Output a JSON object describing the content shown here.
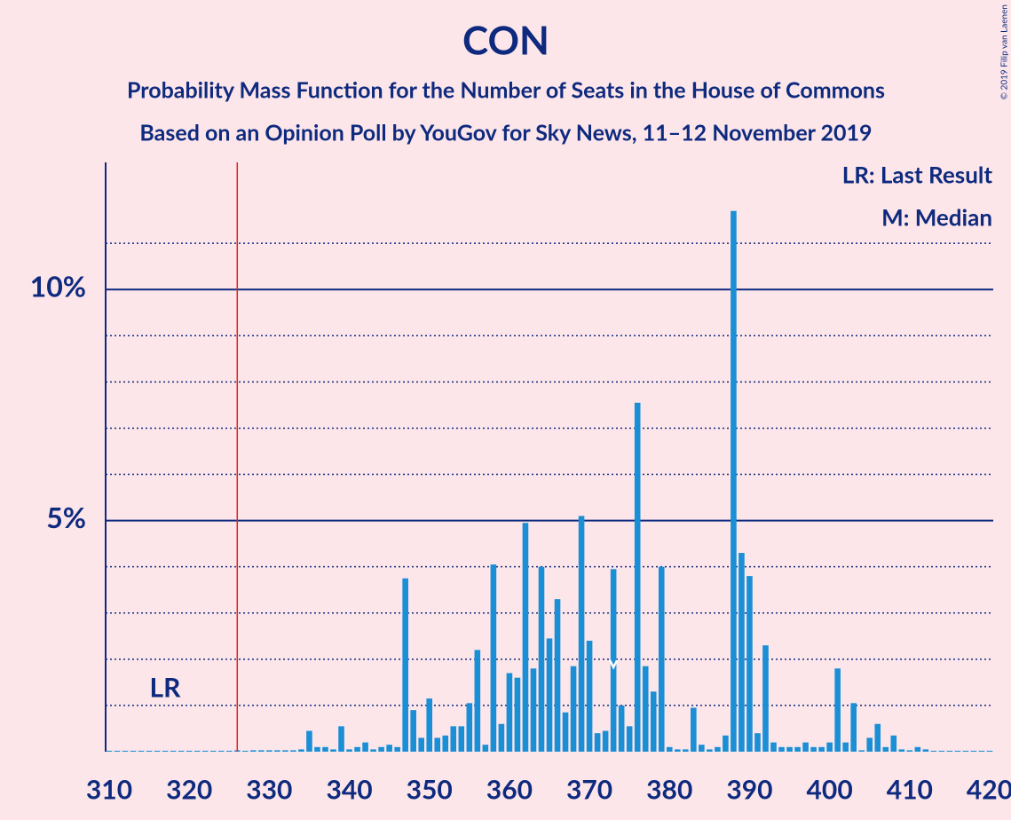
{
  "chart_data": {
    "type": "bar",
    "title": "CON",
    "subtitle": "Probability Mass Function for the Number of Seats in the House of Commons",
    "subtitle2": "Based on an Opinion Poll by YouGov for Sky News, 11–12 November 2019",
    "copyright": "© 2019 Filip van Laenen",
    "legend_lr": "LR: Last Result",
    "legend_median": "M: Median",
    "last_result_label": "LR",
    "last_result": 326,
    "median": 373,
    "color": "#1a8fd6",
    "x": [
      310,
      311,
      312,
      313,
      314,
      315,
      316,
      317,
      318,
      319,
      320,
      321,
      322,
      323,
      324,
      325,
      326,
      327,
      328,
      329,
      330,
      331,
      332,
      333,
      334,
      335,
      336,
      337,
      338,
      339,
      340,
      341,
      342,
      343,
      344,
      345,
      346,
      347,
      348,
      349,
      350,
      351,
      352,
      353,
      354,
      355,
      356,
      357,
      358,
      359,
      360,
      361,
      362,
      363,
      364,
      365,
      366,
      367,
      368,
      369,
      370,
      371,
      372,
      373,
      374,
      375,
      376,
      377,
      378,
      379,
      380,
      381,
      382,
      383,
      384,
      385,
      386,
      387,
      388,
      389,
      390,
      391,
      392,
      393,
      394,
      395,
      396,
      397,
      398,
      399,
      400,
      401,
      402,
      403,
      404,
      405,
      406,
      407,
      408,
      409,
      410,
      411,
      412,
      413,
      414,
      415,
      416,
      417,
      418,
      419,
      420
    ],
    "values": [
      0.02,
      0.02,
      0.02,
      0.02,
      0.02,
      0.02,
      0.02,
      0.02,
      0.02,
      0.02,
      0.02,
      0.02,
      0.02,
      0.02,
      0.02,
      0.02,
      0.03,
      0.02,
      0.03,
      0.03,
      0.03,
      0.03,
      0.03,
      0.03,
      0.05,
      0.45,
      0.1,
      0.1,
      0.05,
      0.55,
      0.05,
      0.1,
      0.2,
      0.05,
      0.1,
      0.15,
      0.1,
      3.75,
      0.9,
      0.3,
      1.15,
      0.3,
      0.35,
      0.55,
      0.55,
      1.05,
      2.2,
      0.15,
      4.05,
      0.6,
      1.7,
      1.6,
      4.95,
      1.8,
      4.0,
      2.45,
      3.3,
      0.85,
      1.85,
      5.1,
      2.4,
      0.4,
      0.45,
      3.95,
      1.0,
      0.55,
      7.55,
      1.85,
      1.3,
      4.0,
      0.1,
      0.05,
      0.05,
      0.95,
      0.15,
      0.05,
      0.1,
      0.35,
      11.7,
      4.3,
      3.8,
      0.4,
      2.3,
      0.2,
      0.1,
      0.1,
      0.1,
      0.2,
      0.1,
      0.1,
      0.2,
      1.8,
      0.2,
      1.05,
      0.03,
      0.3,
      0.6,
      0.1,
      0.35,
      0.05,
      0.03,
      0.1,
      0.05,
      0.02,
      0.02,
      0.02,
      0.02,
      0.02,
      0.02,
      0.02,
      0.02
    ],
    "xlim": [
      310,
      420
    ],
    "xticks": [
      310,
      320,
      330,
      340,
      350,
      360,
      370,
      380,
      390,
      400,
      410,
      420
    ],
    "ylim": [
      0,
      12.75
    ],
    "yticks": [
      {
        "value": 5,
        "label": "5%"
      },
      {
        "value": 10,
        "label": "10%"
      }
    ],
    "minor_yticks": [
      1,
      2,
      3,
      4,
      6,
      7,
      8,
      9,
      11
    ],
    "grid": true
  }
}
